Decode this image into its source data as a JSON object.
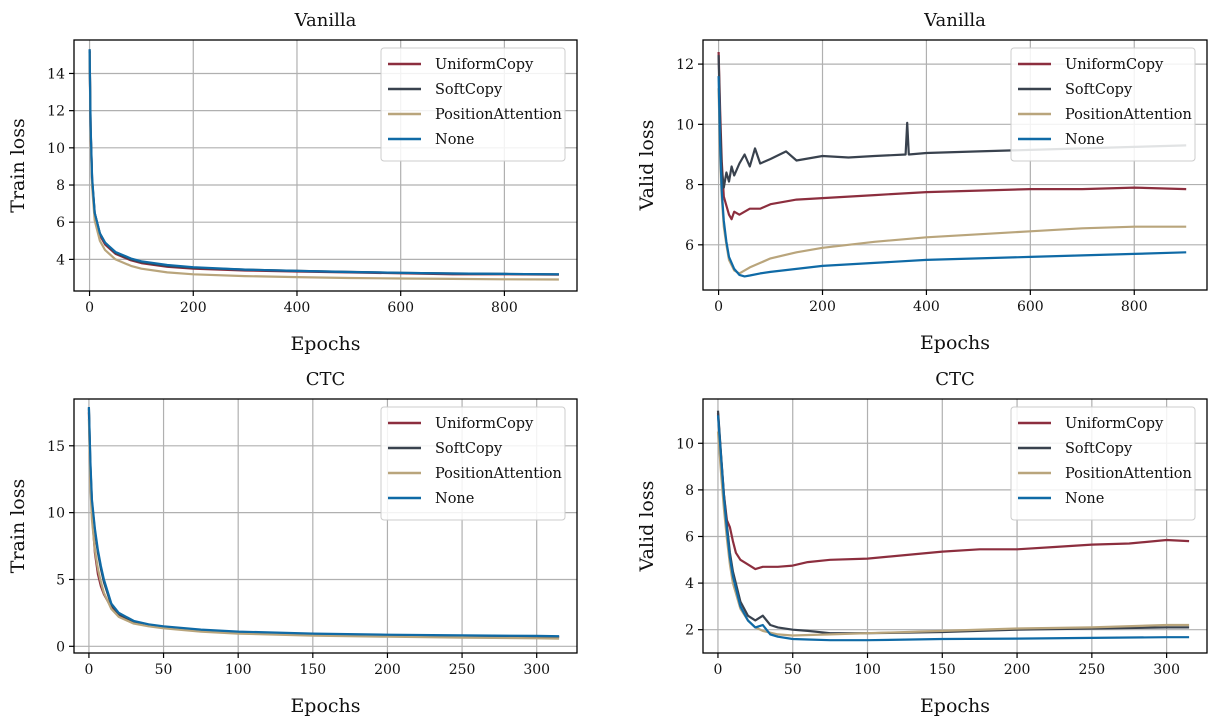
{
  "colors": {
    "UniformCopy": "#8c2e3e",
    "SoftCopy": "#39424e",
    "PositionAttention": "#b9a57c",
    "None": "#0f6aa6"
  },
  "chart_data": [
    {
      "type": "line",
      "title": "Vanilla",
      "xlabel": "Epochs",
      "ylabel": "Train loss",
      "xlim": [
        -30,
        940
      ],
      "ylim": [
        2.3,
        15.8
      ],
      "xticks": [
        0,
        200,
        400,
        600,
        800
      ],
      "yticks": [
        4,
        6,
        8,
        10,
        12,
        14
      ],
      "grid": true,
      "legend_position": "top-right",
      "series": [
        {
          "name": "UniformCopy",
          "x": [
            0,
            2,
            5,
            10,
            20,
            30,
            50,
            80,
            100,
            150,
            200,
            300,
            400,
            500,
            600,
            700,
            800,
            905
          ],
          "y": [
            15.2,
            11.0,
            8.2,
            6.4,
            5.3,
            4.8,
            4.3,
            3.95,
            3.8,
            3.6,
            3.5,
            3.4,
            3.35,
            3.3,
            3.25,
            3.2,
            3.2,
            3.18
          ]
        },
        {
          "name": "SoftCopy",
          "x": [
            0,
            2,
            5,
            10,
            20,
            30,
            50,
            80,
            100,
            150,
            200,
            300,
            400,
            500,
            600,
            700,
            800,
            905
          ],
          "y": [
            15.3,
            11.1,
            8.3,
            6.5,
            5.4,
            4.9,
            4.35,
            4.0,
            3.85,
            3.65,
            3.55,
            3.45,
            3.38,
            3.33,
            3.28,
            3.24,
            3.22,
            3.2
          ]
        },
        {
          "name": "PositionAttention",
          "x": [
            0,
            2,
            5,
            10,
            20,
            30,
            50,
            80,
            100,
            150,
            200,
            300,
            400,
            500,
            600,
            700,
            800,
            905
          ],
          "y": [
            15.1,
            10.8,
            7.9,
            6.1,
            5.0,
            4.5,
            4.0,
            3.65,
            3.5,
            3.3,
            3.2,
            3.1,
            3.05,
            3.0,
            2.97,
            2.95,
            2.93,
            2.92
          ]
        },
        {
          "name": "None",
          "x": [
            0,
            2,
            5,
            10,
            20,
            30,
            50,
            80,
            100,
            150,
            200,
            300,
            400,
            500,
            600,
            700,
            800,
            905
          ],
          "y": [
            15.3,
            11.2,
            8.4,
            6.5,
            5.4,
            4.9,
            4.4,
            4.05,
            3.9,
            3.7,
            3.58,
            3.45,
            3.38,
            3.32,
            3.28,
            3.24,
            3.22,
            3.2
          ]
        }
      ]
    },
    {
      "type": "line",
      "title": "Vanilla",
      "xlabel": "Epochs",
      "ylabel": "Valid loss",
      "xlim": [
        -30,
        940
      ],
      "ylim": [
        4.5,
        12.8
      ],
      "xticks": [
        0,
        200,
        400,
        600,
        800
      ],
      "yticks": [
        6,
        8,
        10,
        12
      ],
      "grid": true,
      "legend_position": "top-right",
      "series": [
        {
          "name": "UniformCopy",
          "x": [
            0,
            3,
            6,
            10,
            15,
            20,
            25,
            30,
            40,
            60,
            80,
            100,
            150,
            200,
            250,
            300,
            400,
            500,
            600,
            700,
            800,
            900
          ],
          "y": [
            12.4,
            10.5,
            8.8,
            7.6,
            7.3,
            7.0,
            6.85,
            7.1,
            7.0,
            7.2,
            7.2,
            7.35,
            7.5,
            7.55,
            7.6,
            7.65,
            7.75,
            7.8,
            7.85,
            7.85,
            7.9,
            7.85
          ]
        },
        {
          "name": "SoftCopy",
          "x": [
            0,
            3,
            6,
            10,
            15,
            20,
            25,
            30,
            40,
            50,
            60,
            70,
            80,
            100,
            130,
            150,
            200,
            250,
            300,
            360,
            363,
            366,
            400,
            500,
            600,
            700,
            800,
            900
          ],
          "y": [
            12.3,
            10.0,
            8.5,
            7.9,
            8.4,
            8.1,
            8.6,
            8.3,
            8.7,
            9.0,
            8.6,
            9.2,
            8.7,
            8.85,
            9.1,
            8.8,
            8.95,
            8.9,
            8.95,
            9.0,
            10.05,
            9.0,
            9.05,
            9.1,
            9.15,
            9.2,
            9.25,
            9.3
          ]
        },
        {
          "name": "PositionAttention",
          "x": [
            0,
            3,
            6,
            10,
            15,
            20,
            30,
            40,
            50,
            60,
            80,
            100,
            150,
            200,
            300,
            400,
            500,
            600,
            700,
            800,
            900
          ],
          "y": [
            11.2,
            9.0,
            7.6,
            6.6,
            6.0,
            5.5,
            5.15,
            5.05,
            5.15,
            5.25,
            5.4,
            5.55,
            5.75,
            5.9,
            6.1,
            6.25,
            6.35,
            6.45,
            6.55,
            6.6,
            6.6
          ]
        },
        {
          "name": "None",
          "x": [
            0,
            3,
            6,
            10,
            15,
            20,
            30,
            40,
            50,
            60,
            80,
            100,
            150,
            200,
            300,
            400,
            500,
            600,
            700,
            800,
            900
          ],
          "y": [
            11.6,
            9.3,
            7.8,
            6.8,
            6.1,
            5.6,
            5.2,
            5.0,
            4.95,
            4.98,
            5.05,
            5.1,
            5.2,
            5.3,
            5.4,
            5.5,
            5.55,
            5.6,
            5.65,
            5.7,
            5.75
          ]
        }
      ]
    },
    {
      "type": "line",
      "title": "CTC",
      "xlabel": "Epochs",
      "ylabel": "Train loss",
      "xlim": [
        -10,
        327
      ],
      "ylim": [
        -0.5,
        18.5
      ],
      "xticks": [
        0,
        50,
        100,
        150,
        200,
        250,
        300
      ],
      "yticks": [
        0,
        5,
        10,
        15
      ],
      "grid": true,
      "legend_position": "top-right",
      "series": [
        {
          "name": "UniformCopy",
          "x": [
            0,
            1,
            2,
            4,
            6,
            8,
            10,
            15,
            20,
            30,
            40,
            50,
            75,
            100,
            150,
            200,
            250,
            300,
            315
          ],
          "y": [
            17.5,
            12.5,
            10.0,
            7.0,
            5.4,
            4.5,
            3.9,
            2.9,
            2.3,
            1.8,
            1.6,
            1.45,
            1.2,
            1.05,
            0.9,
            0.82,
            0.77,
            0.72,
            0.7
          ]
        },
        {
          "name": "SoftCopy",
          "x": [
            0,
            1,
            2,
            4,
            6,
            8,
            10,
            15,
            20,
            30,
            40,
            50,
            75,
            100,
            150,
            200,
            250,
            300,
            315
          ],
          "y": [
            17.8,
            13.5,
            10.8,
            8.6,
            7.0,
            5.8,
            4.8,
            3.1,
            2.4,
            1.85,
            1.6,
            1.45,
            1.2,
            1.05,
            0.9,
            0.83,
            0.78,
            0.74,
            0.72
          ]
        },
        {
          "name": "PositionAttention",
          "x": [
            0,
            1,
            2,
            4,
            6,
            8,
            10,
            15,
            20,
            30,
            40,
            50,
            75,
            100,
            150,
            200,
            250,
            300,
            315
          ],
          "y": [
            17.0,
            12.0,
            9.5,
            7.2,
            5.8,
            4.8,
            4.0,
            2.8,
            2.2,
            1.7,
            1.5,
            1.35,
            1.1,
            0.95,
            0.8,
            0.72,
            0.65,
            0.6,
            0.58
          ]
        },
        {
          "name": "None",
          "x": [
            0,
            1,
            2,
            4,
            6,
            8,
            10,
            15,
            20,
            30,
            40,
            50,
            75,
            100,
            150,
            200,
            250,
            300,
            315
          ],
          "y": [
            17.9,
            13.8,
            11.0,
            8.8,
            7.2,
            6.0,
            5.0,
            3.2,
            2.5,
            1.9,
            1.65,
            1.5,
            1.25,
            1.1,
            0.95,
            0.87,
            0.82,
            0.78,
            0.76
          ]
        }
      ]
    },
    {
      "type": "line",
      "title": "CTC",
      "xlabel": "Epochs",
      "ylabel": "Valid loss",
      "xlim": [
        -10,
        327
      ],
      "ylim": [
        1.0,
        11.9
      ],
      "xticks": [
        0,
        50,
        100,
        150,
        200,
        250,
        300
      ],
      "yticks": [
        2,
        4,
        6,
        8,
        10
      ],
      "grid": true,
      "legend_position": "top-right",
      "series": [
        {
          "name": "UniformCopy",
          "x": [
            0,
            2,
            4,
            6,
            8,
            10,
            12,
            15,
            20,
            25,
            30,
            40,
            50,
            60,
            75,
            100,
            125,
            150,
            175,
            200,
            225,
            250,
            275,
            300,
            315
          ],
          "y": [
            11.3,
            9.5,
            7.8,
            6.7,
            6.4,
            5.8,
            5.3,
            5.0,
            4.8,
            4.6,
            4.7,
            4.7,
            4.75,
            4.9,
            5.0,
            5.05,
            5.2,
            5.35,
            5.45,
            5.45,
            5.55,
            5.65,
            5.7,
            5.85,
            5.8
          ]
        },
        {
          "name": "SoftCopy",
          "x": [
            0,
            2,
            4,
            6,
            8,
            10,
            15,
            20,
            25,
            30,
            35,
            40,
            50,
            60,
            75,
            100,
            150,
            200,
            250,
            300,
            315
          ],
          "y": [
            11.4,
            9.6,
            7.8,
            6.5,
            5.3,
            4.5,
            3.2,
            2.6,
            2.4,
            2.6,
            2.2,
            2.1,
            2.0,
            1.95,
            1.85,
            1.85,
            1.9,
            2.0,
            2.05,
            2.1,
            2.1
          ]
        },
        {
          "name": "PositionAttention",
          "x": [
            0,
            2,
            4,
            6,
            8,
            10,
            15,
            20,
            25,
            30,
            40,
            50,
            75,
            100,
            150,
            200,
            250,
            300,
            315
          ],
          "y": [
            10.5,
            8.8,
            7.2,
            5.9,
            4.8,
            4.0,
            2.9,
            2.4,
            2.1,
            1.95,
            1.8,
            1.75,
            1.8,
            1.85,
            1.95,
            2.05,
            2.1,
            2.2,
            2.2
          ]
        },
        {
          "name": "None",
          "x": [
            0,
            2,
            4,
            6,
            8,
            10,
            15,
            20,
            25,
            30,
            35,
            40,
            50,
            60,
            75,
            100,
            150,
            200,
            250,
            300,
            315
          ],
          "y": [
            11.2,
            9.5,
            7.7,
            6.3,
            5.1,
            4.3,
            3.0,
            2.4,
            2.1,
            2.2,
            1.8,
            1.7,
            1.6,
            1.58,
            1.55,
            1.55,
            1.6,
            1.62,
            1.65,
            1.68,
            1.68
          ]
        }
      ]
    }
  ]
}
